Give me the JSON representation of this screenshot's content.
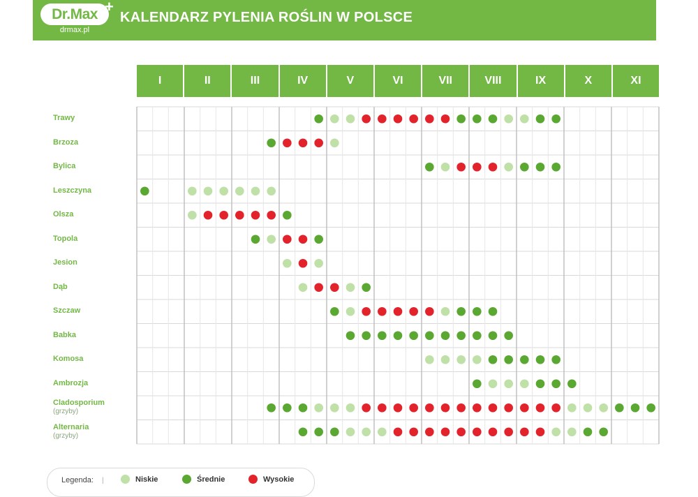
{
  "header": {
    "logo": "Dr.Max",
    "logo_plus": "+",
    "url": "drmax.pl",
    "title": "KALENDARZ PYLENIA ROŚLIN W POLSCE"
  },
  "colors": {
    "brand": "#73b745",
    "low": "#bfe0a6",
    "medium": "#5aa832",
    "high": "#e3232b",
    "grid": "#d9d9d9"
  },
  "legend": {
    "title": "Legenda:",
    "items": [
      {
        "label": "Niskie",
        "level": "low"
      },
      {
        "label": "Średnie",
        "level": "medium"
      },
      {
        "label": "Wysokie",
        "level": "high"
      }
    ]
  },
  "chart_data": {
    "type": "heatmap",
    "title": "KALENDARZ PYLENIA ROŚLIN W POLSCE",
    "months": [
      "I",
      "II",
      "III",
      "IV",
      "V",
      "VI",
      "VII",
      "VIII",
      "IX",
      "X",
      "XI"
    ],
    "columns_per_month": 3,
    "levels": {
      "L": "Niskie",
      "M": "Średnie",
      "H": "Wysokie"
    },
    "rows": [
      {
        "label": "Trawy",
        "sub": "",
        "cells": [
          "",
          "",
          "",
          "",
          "",
          "",
          "",
          "",
          "",
          "",
          "",
          "M",
          "L",
          "L",
          "H",
          "H",
          "H",
          "H",
          "H",
          "H",
          "M",
          "M",
          "M",
          "L",
          "L",
          "M",
          "M",
          "",
          "",
          "",
          "",
          "",
          ""
        ]
      },
      {
        "label": "Brzoza",
        "sub": "",
        "cells": [
          "",
          "",
          "",
          "",
          "",
          "",
          "",
          "",
          "M",
          "H",
          "H",
          "H",
          "L",
          "",
          "",
          "",
          "",
          "",
          "",
          "",
          "",
          "",
          "",
          "",
          "",
          "",
          "",
          "",
          "",
          "",
          "",
          "",
          ""
        ]
      },
      {
        "label": "Bylica",
        "sub": "",
        "cells": [
          "",
          "",
          "",
          "",
          "",
          "",
          "",
          "",
          "",
          "",
          "",
          "",
          "",
          "",
          "",
          "",
          "",
          "",
          "M",
          "L",
          "H",
          "H",
          "H",
          "L",
          "M",
          "M",
          "M",
          "",
          "",
          "",
          "",
          "",
          ""
        ]
      },
      {
        "label": "Leszczyna",
        "sub": "",
        "cells": [
          "M",
          "",
          "",
          "L",
          "L",
          "L",
          "L",
          "L",
          "L",
          "",
          "",
          "",
          "",
          "",
          "",
          "",
          "",
          "",
          "",
          "",
          "",
          "",
          "",
          "",
          "",
          "",
          "",
          "",
          "",
          "",
          "",
          "",
          ""
        ]
      },
      {
        "label": "Olsza",
        "sub": "",
        "cells": [
          "",
          "",
          "",
          "L",
          "H",
          "H",
          "H",
          "H",
          "H",
          "M",
          "",
          "",
          "",
          "",
          "",
          "",
          "",
          "",
          "",
          "",
          "",
          "",
          "",
          "",
          "",
          "",
          "",
          "",
          "",
          "",
          "",
          "",
          ""
        ]
      },
      {
        "label": "Topola",
        "sub": "",
        "cells": [
          "",
          "",
          "",
          "",
          "",
          "",
          "",
          "M",
          "L",
          "H",
          "H",
          "M",
          "",
          "",
          "",
          "",
          "",
          "",
          "",
          "",
          "",
          "",
          "",
          "",
          "",
          "",
          "",
          "",
          "",
          "",
          "",
          "",
          ""
        ]
      },
      {
        "label": "Jesion",
        "sub": "",
        "cells": [
          "",
          "",
          "",
          "",
          "",
          "",
          "",
          "",
          "",
          "L",
          "H",
          "L",
          "",
          "",
          "",
          "",
          "",
          "",
          "",
          "",
          "",
          "",
          "",
          "",
          "",
          "",
          "",
          "",
          "",
          "",
          "",
          "",
          ""
        ]
      },
      {
        "label": "Dąb",
        "sub": "",
        "cells": [
          "",
          "",
          "",
          "",
          "",
          "",
          "",
          "",
          "",
          "",
          "L",
          "H",
          "H",
          "L",
          "M",
          "",
          "",
          "",
          "",
          "",
          "",
          "",
          "",
          "",
          "",
          "",
          "",
          "",
          "",
          "",
          "",
          "",
          ""
        ]
      },
      {
        "label": "Szczaw",
        "sub": "",
        "cells": [
          "",
          "",
          "",
          "",
          "",
          "",
          "",
          "",
          "",
          "",
          "",
          "",
          "M",
          "L",
          "H",
          "H",
          "H",
          "H",
          "H",
          "L",
          "M",
          "M",
          "M",
          "",
          "",
          "",
          "",
          "",
          "",
          "",
          "",
          "",
          ""
        ]
      },
      {
        "label": "Babka",
        "sub": "",
        "cells": [
          "",
          "",
          "",
          "",
          "",
          "",
          "",
          "",
          "",
          "",
          "",
          "",
          "",
          "M",
          "M",
          "M",
          "M",
          "M",
          "M",
          "M",
          "M",
          "M",
          "M",
          "M",
          "",
          "",
          "",
          "",
          "",
          "",
          "",
          "",
          ""
        ]
      },
      {
        "label": "Komosa",
        "sub": "",
        "cells": [
          "",
          "",
          "",
          "",
          "",
          "",
          "",
          "",
          "",
          "",
          "",
          "",
          "",
          "",
          "",
          "",
          "",
          "",
          "L",
          "L",
          "L",
          "L",
          "M",
          "M",
          "M",
          "M",
          "M",
          "",
          "",
          "",
          "",
          "",
          ""
        ]
      },
      {
        "label": "Ambrozja",
        "sub": "",
        "cells": [
          "",
          "",
          "",
          "",
          "",
          "",
          "",
          "",
          "",
          "",
          "",
          "",
          "",
          "",
          "",
          "",
          "",
          "",
          "",
          "",
          "",
          "M",
          "L",
          "L",
          "L",
          "M",
          "M",
          "M",
          "",
          "",
          "",
          "",
          ""
        ]
      },
      {
        "label": "Cladosporium",
        "sub": "(grzyby)",
        "cells": [
          "",
          "",
          "",
          "",
          "",
          "",
          "",
          "",
          "M",
          "M",
          "M",
          "L",
          "L",
          "L",
          "H",
          "H",
          "H",
          "H",
          "H",
          "H",
          "H",
          "H",
          "H",
          "H",
          "H",
          "H",
          "H",
          "L",
          "L",
          "L",
          "M",
          "M",
          "M"
        ]
      },
      {
        "label": "Alternaria",
        "sub": "(grzyby)",
        "cells": [
          "",
          "",
          "",
          "",
          "",
          "",
          "",
          "",
          "",
          "",
          "M",
          "M",
          "M",
          "L",
          "L",
          "L",
          "H",
          "H",
          "H",
          "H",
          "H",
          "H",
          "H",
          "H",
          "H",
          "H",
          "L",
          "L",
          "M",
          "M",
          "",
          "",
          ""
        ]
      }
    ]
  }
}
